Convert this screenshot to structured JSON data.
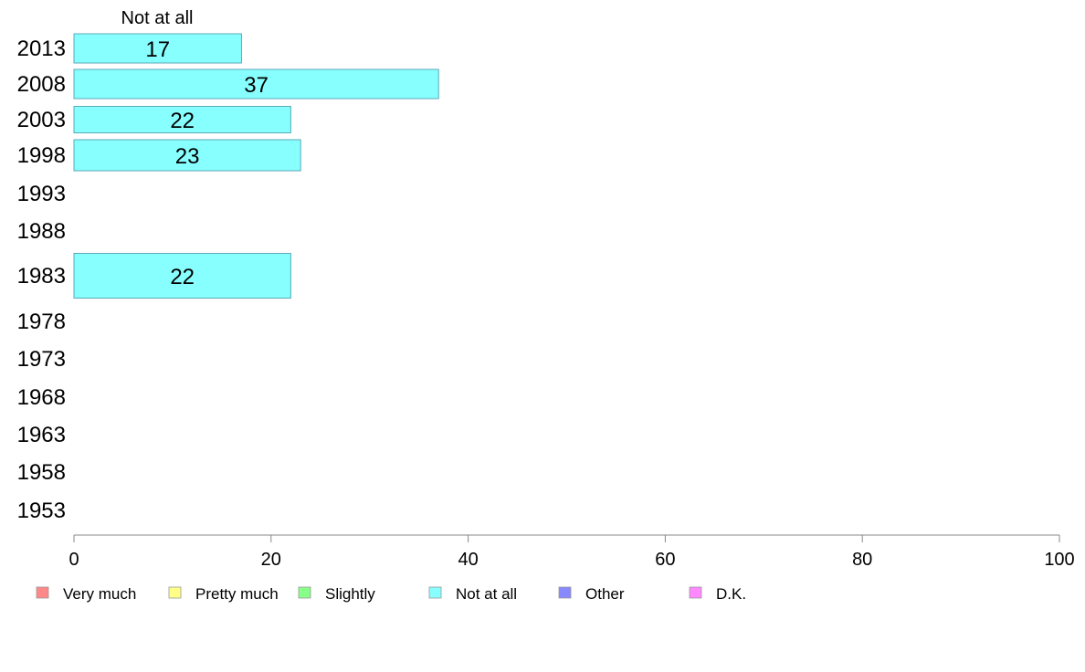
{
  "chart_data": {
    "type": "bar",
    "orientation": "horizontal",
    "series_title": "Not at all",
    "categories": [
      "2013",
      "2008",
      "2003",
      "1998",
      "1993",
      "1988",
      "1983",
      "1978",
      "1973",
      "1968",
      "1963",
      "1958",
      "1953"
    ],
    "series": [
      {
        "name": "Not at all",
        "color": "#88ffff",
        "values": [
          17,
          37,
          22,
          23,
          null,
          null,
          22,
          null,
          null,
          null,
          null,
          null,
          null
        ]
      }
    ],
    "xlim": [
      0,
      100
    ],
    "xticks": [
      0,
      20,
      40,
      60,
      80,
      100
    ],
    "grid": false,
    "legend_position": "bottom",
    "legend": [
      {
        "label": "Very much",
        "color": "#ff8888"
      },
      {
        "label": "Pretty much",
        "color": "#ffff88"
      },
      {
        "label": "Slightly",
        "color": "#88ff88"
      },
      {
        "label": "Not at all",
        "color": "#88ffff"
      },
      {
        "label": "Other",
        "color": "#8888ff"
      },
      {
        "label": "D.K.",
        "color": "#ff88ff"
      }
    ]
  }
}
